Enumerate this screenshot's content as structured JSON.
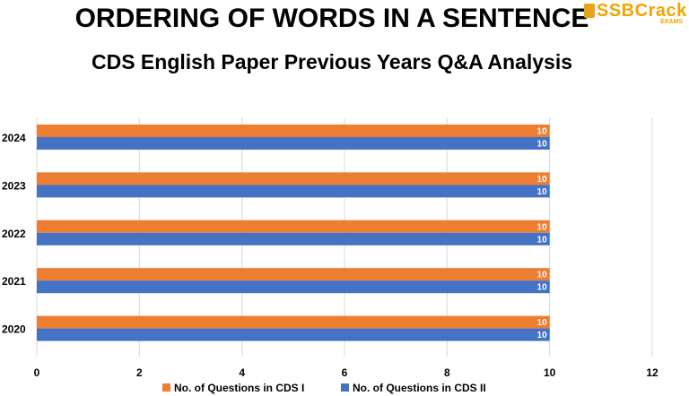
{
  "header": {
    "title": "ORDERING OF WORDS IN A SENTENCE",
    "subtitle": "CDS English Paper Previous Years Q&A Analysis"
  },
  "logo": {
    "text": "SSBCrack",
    "sub": "EXAMS"
  },
  "colors": {
    "cds1": "#ED7D31",
    "cds2": "#4472C4",
    "grid": "#d9d9d9"
  },
  "chart_data": {
    "type": "bar",
    "orientation": "horizontal",
    "categories": [
      "2024",
      "2023",
      "2022",
      "2021",
      "2020"
    ],
    "series": [
      {
        "name": "No. of Questions in CDS I",
        "values": [
          10,
          10,
          10,
          10,
          10
        ],
        "color": "#ED7D31"
      },
      {
        "name": "No. of Questions in CDS II",
        "values": [
          10,
          10,
          10,
          10,
          10
        ],
        "color": "#4472C4"
      }
    ],
    "xlim": [
      0,
      12
    ],
    "xticks": [
      "0",
      "2",
      "4",
      "6",
      "8",
      "10",
      "12"
    ],
    "grid": true,
    "data_labels": true,
    "legend": "bottom"
  }
}
